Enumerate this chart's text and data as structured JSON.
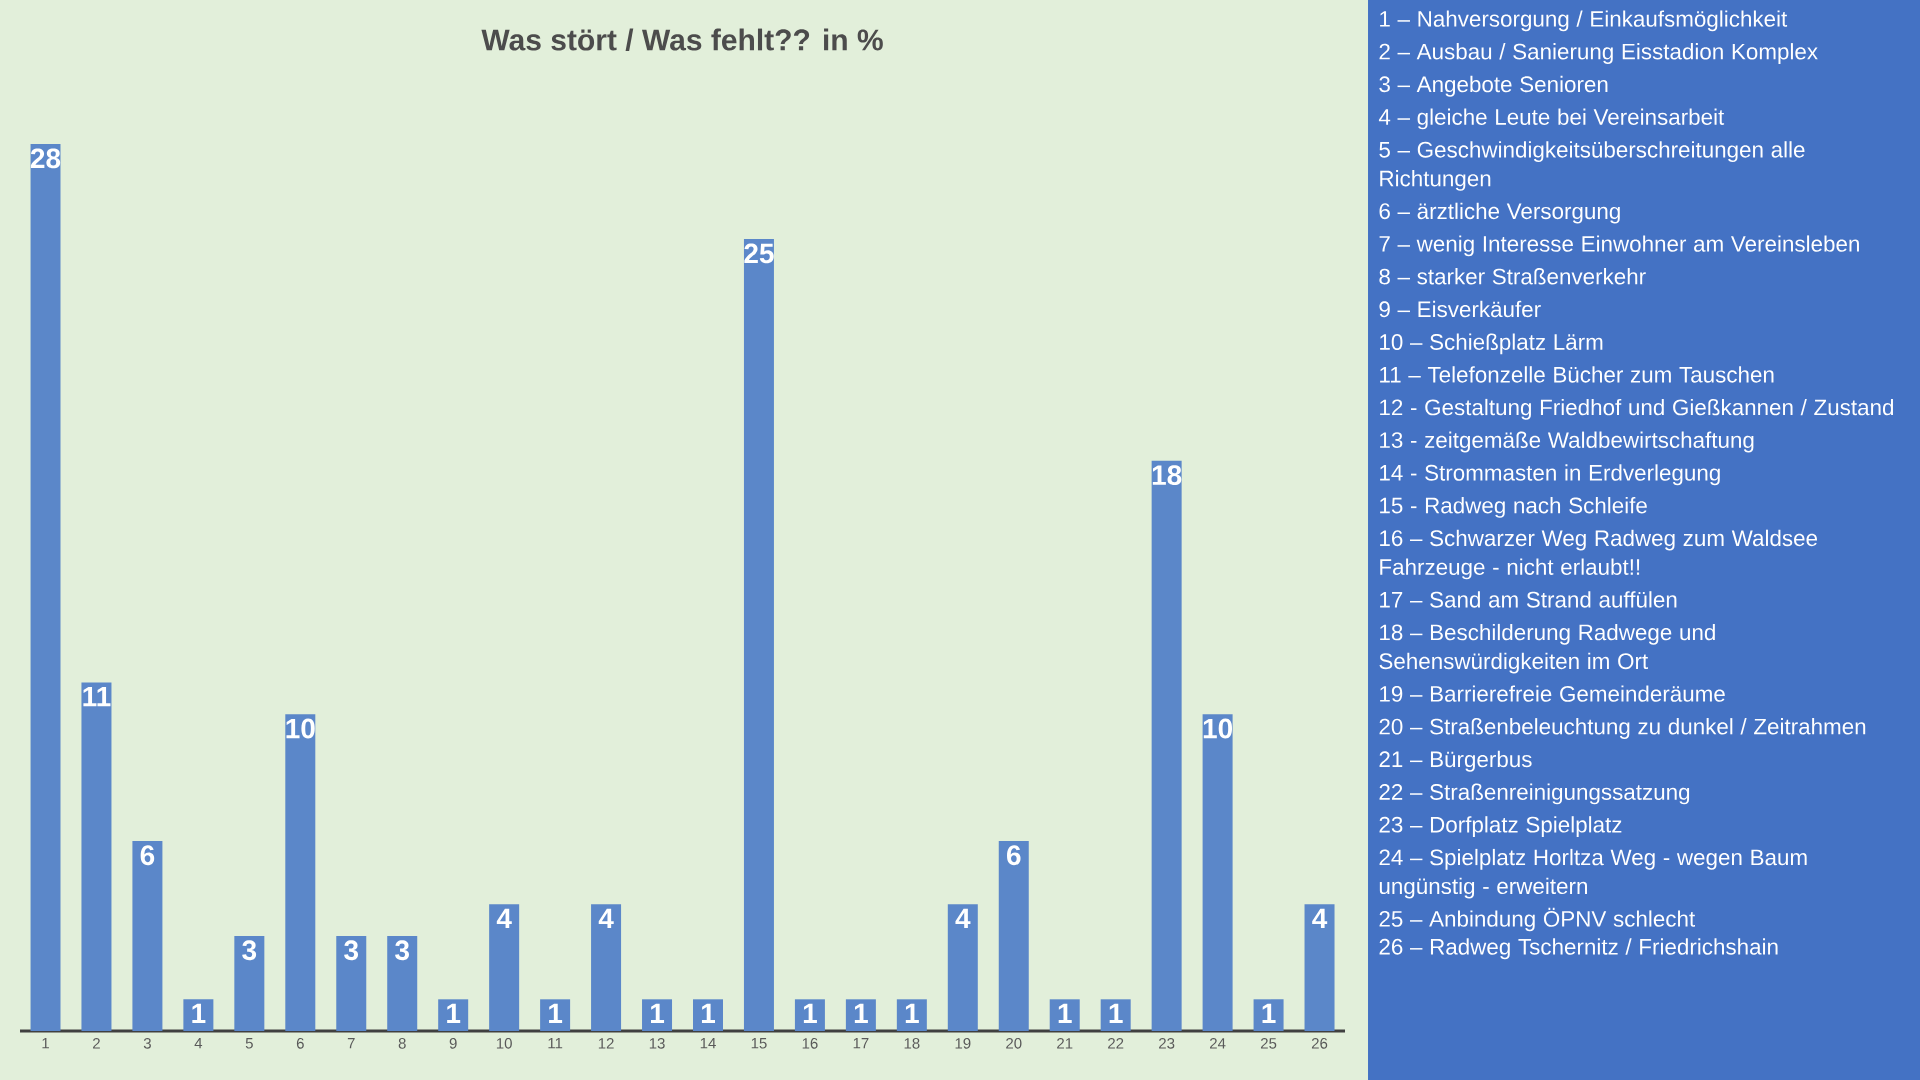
{
  "chart_data": {
    "type": "bar",
    "title": "Was stört / Was fehlt?? in %",
    "categories": [
      "1",
      "2",
      "3",
      "4",
      "5",
      "6",
      "7",
      "8",
      "9",
      "10",
      "11",
      "12",
      "13",
      "14",
      "15",
      "16",
      "17",
      "18",
      "19",
      "20",
      "21",
      "22",
      "23",
      "24",
      "25",
      "26"
    ],
    "values": [
      28,
      11,
      6,
      1,
      3,
      10,
      3,
      3,
      1,
      4,
      1,
      4,
      1,
      1,
      25,
      1,
      1,
      1,
      4,
      6,
      1,
      1,
      18,
      10,
      1,
      4
    ],
    "color": "#5b87c9",
    "tick_labels": "x",
    "data_labels": true,
    "annotations": [
      "1 – Nahversorgung / Einkaufsmöglichkeit",
      "2 – Ausbau / Sanierung Eisstadion Komplex",
      "3 – Angebote Senioren",
      "4 – gleiche Leute bei Vereinsarbeit",
      "5 – Geschwindigkeitsüberschreitungen alle Richtungen",
      "6 – ärztliche Versorgung",
      "7 – wenig Interesse Einwohner am Vereinsleben",
      "8 – starker Straßenverkehr",
      "9 – Eisverkäufer",
      "10 – Schießplatz Lärm",
      "11 – Telefonzelle Bücher zum Tauschen",
      "12 - Gestaltung Friedhof und Gießkannen / Zustand",
      "13 - zeitgemäße Waldbewirtschaftung",
      "14 - Strommasten in Erdverlegung",
      "15 - Radweg nach Schleife",
      "16 – Schwarzer Weg Radweg zum Waldsee Fahrzeuge - nicht erlaubt!!",
      "17 – Sand am Strand auffülen",
      "18 – Beschilderung Radwege und Sehenswürdigkeiten im Ort",
      "19 – Barrierefreie Gemeinderäume",
      "20 – Straßenbeleuchtung zu dunkel / Zeitrahmen",
      "21 – Bürgerbus",
      "22 – Straßenreinigungssatzung",
      "23 – Dorfplatz Spielplatz",
      "24 – Spielplatz Horltza Weg - wegen Baum ungünstig - erweitern",
      "25 – Anbindung ÖPNV schlecht",
      "26 – Radweg Tschernitz / Friedrichshain"
    ]
  }
}
